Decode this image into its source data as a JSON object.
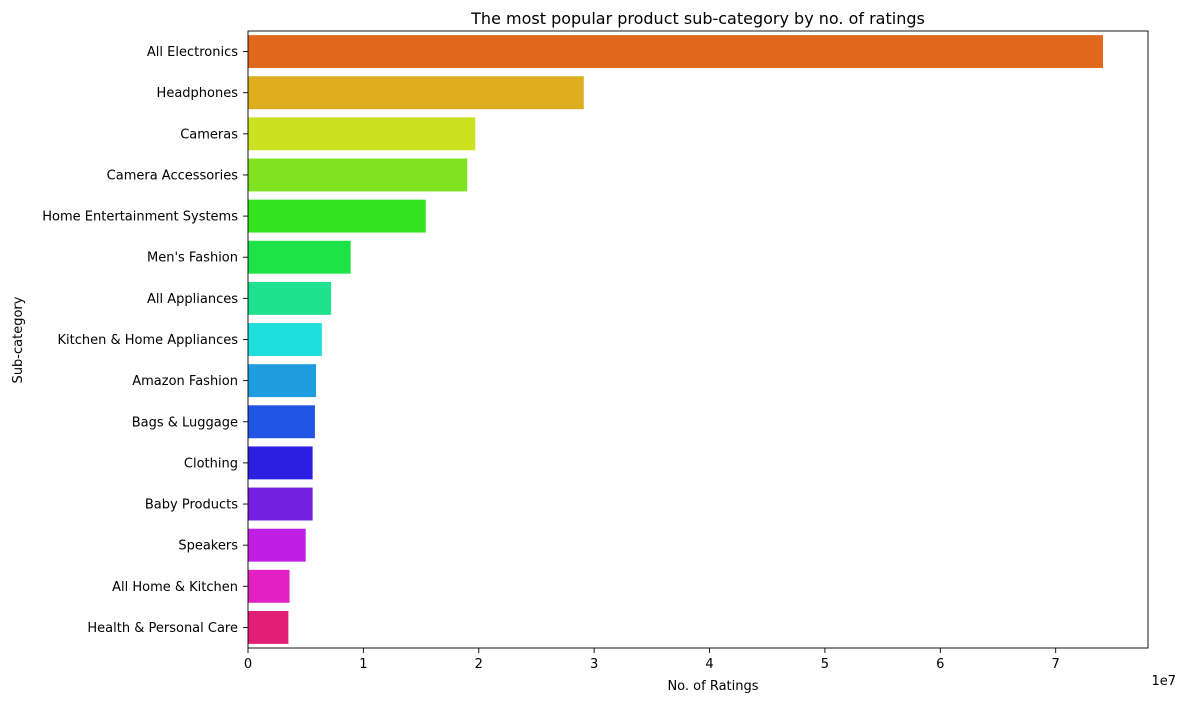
{
  "chart_data": {
    "type": "bar",
    "orientation": "horizontal",
    "title": "The most popular product sub-category by no. of ratings",
    "xlabel": "No. of Ratings",
    "ylabel": "Sub-category",
    "x_offset_label": "1e7",
    "xlim": [
      0,
      7.8
    ],
    "x_ticks": [
      0,
      1,
      2,
      3,
      4,
      5,
      6,
      7
    ],
    "grid": false,
    "legend": "none",
    "categories": [
      "All Electronics",
      "Headphones",
      "Cameras",
      "Camera Accessories",
      "Home Entertainment Systems",
      "Men's Fashion",
      "All Appliances",
      "Kitchen & Home Appliances",
      "Amazon Fashion",
      "Bags & Luggage",
      "Clothing",
      "Baby Products",
      "Speakers",
      "All Home & Kitchen",
      "Health & Personal Care"
    ],
    "values": [
      7.41,
      2.91,
      1.97,
      1.9,
      1.54,
      0.89,
      0.72,
      0.64,
      0.59,
      0.58,
      0.56,
      0.56,
      0.5,
      0.36,
      0.35
    ],
    "colors": [
      "#e3681f",
      "#dfae1f",
      "#cce11f",
      "#80e31f",
      "#34e41f",
      "#1fe346",
      "#1fe18f",
      "#1fdfdd",
      "#1f9de0",
      "#1f55e2",
      "#2c1fe1",
      "#751fe2",
      "#bf1fe2",
      "#e21fc3",
      "#e21f76"
    ]
  }
}
